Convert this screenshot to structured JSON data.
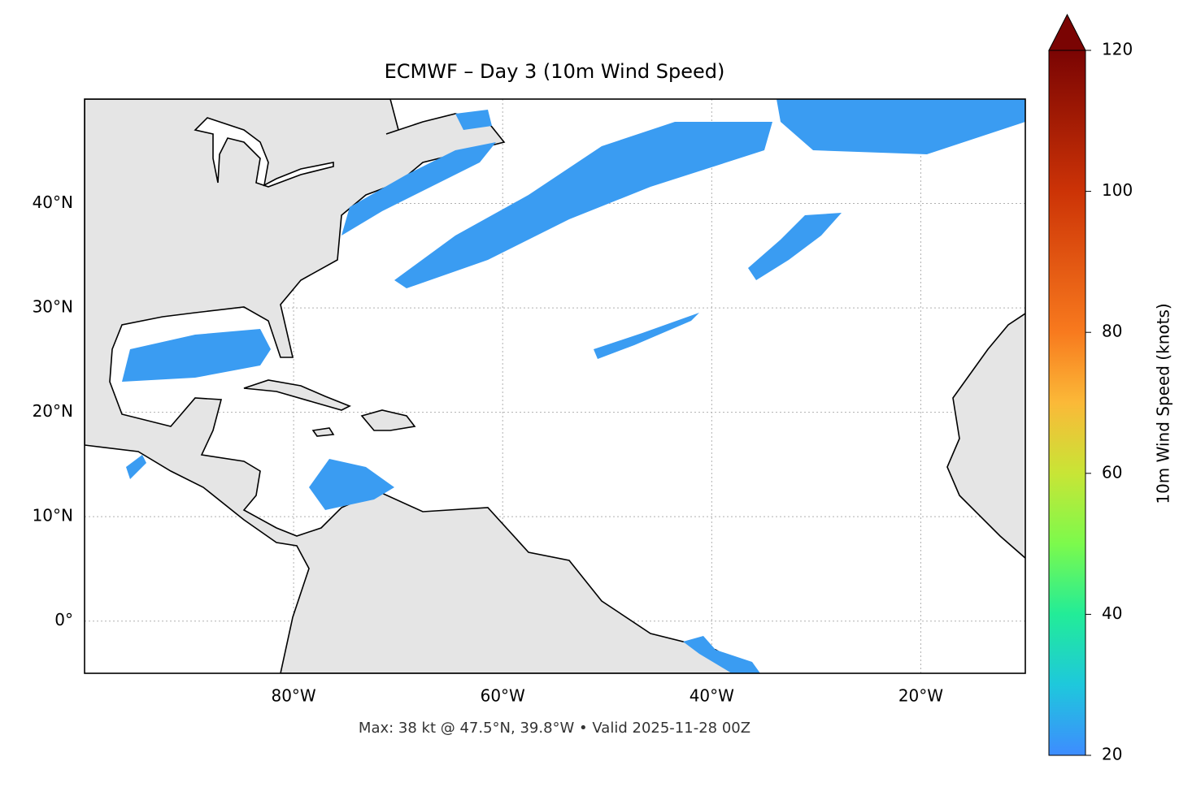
{
  "chart_data": {
    "type": "map",
    "title": "ECMWF – Day 3 (10m Wind Speed)",
    "footer": "Max: 38 kt @ 47.5°N, 39.8°W • Valid 2025-11-28 00Z",
    "xlim": [
      -100,
      -10
    ],
    "ylim": [
      -5,
      50
    ],
    "xticks": [
      {
        "value": -80,
        "label": "80°W"
      },
      {
        "value": -60,
        "label": "60°W"
      },
      {
        "value": -40,
        "label": "40°W"
      },
      {
        "value": -20,
        "label": "20°W"
      }
    ],
    "yticks": [
      {
        "value": 0,
        "label": "0°"
      },
      {
        "value": 10,
        "label": "10°N"
      },
      {
        "value": 20,
        "label": "20°N"
      },
      {
        "value": 30,
        "label": "30°N"
      },
      {
        "value": 40,
        "label": "40°N"
      }
    ],
    "grid": true,
    "colorbar": {
      "label": "10m Wind Speed (knots)",
      "lim": [
        20,
        120
      ],
      "ticks": [
        20,
        40,
        60,
        80,
        100,
        120
      ],
      "extend": "max"
    }
  }
}
